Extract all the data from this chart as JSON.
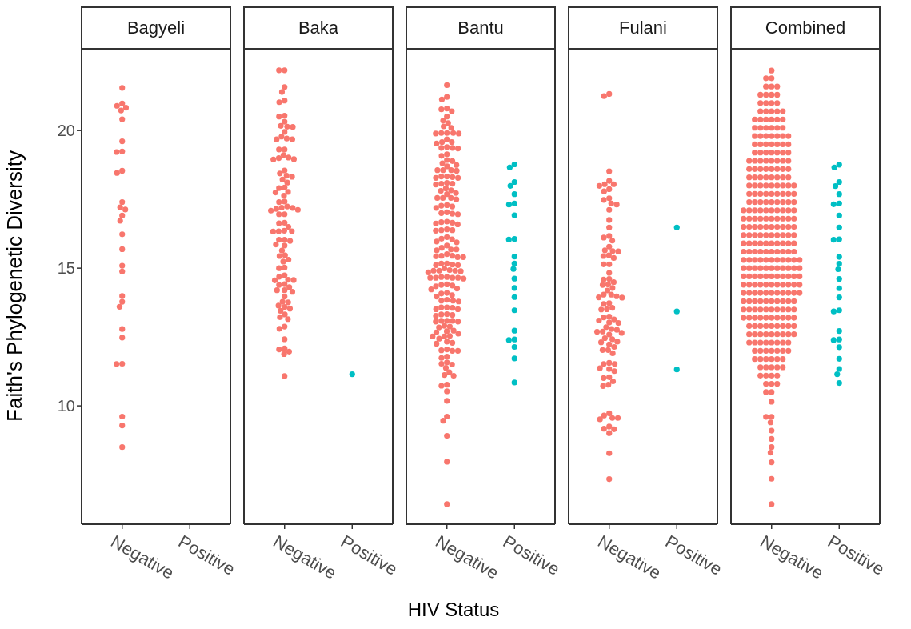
{
  "chart_data": [
    {
      "type": "scatter",
      "title": "Bagyeli",
      "ylabel": "Faith's Phylogenetic Diversity",
      "categories": [
        "Negative",
        "Positive"
      ],
      "ylim": [
        5.7,
        23.0
      ],
      "yticks": [
        10,
        15,
        20
      ],
      "marker": "circle",
      "series": [
        {
          "color": "#f8766d",
          "x": [
            "Negative",
            "Negative",
            "Negative",
            "Negative",
            "Negative",
            "Negative",
            "Negative",
            "Negative",
            "Negative",
            "Negative",
            "Negative",
            "Negative",
            "Negative",
            "Negative",
            "Negative",
            "Negative",
            "Negative",
            "Negative",
            "Negative",
            "Negative",
            "Negative",
            "Negative",
            "Negative",
            "Negative",
            "Negative",
            "Negative",
            "Negative",
            "Negative",
            "Negative",
            "Negative"
          ],
          "values": [
            21.55,
            20.9,
            20.73,
            20.98,
            20.83,
            20.41,
            19.61,
            19.22,
            19.24,
            18.46,
            18.54,
            17.4,
            17.21,
            17.13,
            16.91,
            16.72,
            16.23,
            15.69,
            15.09,
            14.88,
            13.99,
            13.78,
            13.6,
            12.79,
            12.48,
            11.52,
            11.53,
            9.61,
            9.29,
            8.5
          ]
        }
      ]
    },
    {
      "type": "scatter",
      "title": "Baka",
      "categories": [
        "Negative",
        "Positive"
      ],
      "ylim": [
        5.7,
        23.0
      ],
      "yticks": [
        10,
        15,
        20
      ],
      "marker": "circle",
      "tick_labels": "x",
      "series": [
        {
          "color": "#f8766d",
          "x": [
            "Negative",
            "Negative",
            "Negative",
            "Negative",
            "Negative",
            "Negative",
            "Negative",
            "Negative",
            "Negative",
            "Negative",
            "Negative",
            "Negative",
            "Negative",
            "Negative",
            "Negative",
            "Negative",
            "Negative",
            "Negative",
            "Negative",
            "Negative",
            "Negative",
            "Negative",
            "Negative",
            "Negative",
            "Negative",
            "Negative",
            "Negative",
            "Negative",
            "Negative",
            "Negative",
            "Negative",
            "Negative",
            "Negative",
            "Negative",
            "Negative",
            "Negative",
            "Negative",
            "Negative",
            "Negative",
            "Negative",
            "Negative",
            "Negative",
            "Negative",
            "Negative",
            "Negative",
            "Negative",
            "Negative",
            "Negative",
            "Negative",
            "Negative",
            "Negative",
            "Negative",
            "Negative",
            "Negative",
            "Negative",
            "Negative",
            "Negative",
            "Negative",
            "Negative",
            "Negative",
            "Negative",
            "Negative",
            "Negative",
            "Negative",
            "Negative",
            "Negative",
            "Negative",
            "Negative",
            "Negative",
            "Negative",
            "Negative",
            "Negative",
            "Negative",
            "Negative",
            "Negative",
            "Negative",
            "Negative",
            "Negative",
            "Negative",
            "Negative",
            "Negative",
            "Negative",
            "Negative",
            "Negative",
            "Negative",
            "Negative",
            "Negative",
            "Negative",
            "Negative",
            "Negative",
            "Negative",
            "Negative",
            "Negative"
          ],
          "values": [
            22.19,
            22.19,
            21.58,
            21.4,
            21.03,
            21.09,
            20.51,
            20.54,
            20.32,
            20.17,
            20.13,
            20.14,
            19.95,
            19.78,
            19.68,
            19.68,
            19.71,
            19.31,
            19.31,
            19.0,
            19.11,
            18.95,
            19.02,
            18.96,
            18.55,
            18.44,
            18.32,
            18.36,
            18.22,
            18.11,
            17.91,
            17.93,
            17.75,
            17.77,
            17.63,
            17.42,
            17.4,
            17.24,
            17.12,
            17.19,
            17.15,
            17.09,
            17.2,
            16.96,
            16.96,
            16.65,
            16.5,
            16.63,
            16.34,
            16.33,
            16.36,
            16.34,
            16.03,
            16.03,
            15.99,
            15.86,
            15.82,
            15.64,
            15.44,
            15.47,
            15.31,
            15.24,
            15.0,
            15.02,
            14.69,
            14.57,
            14.56,
            14.74,
            14.58,
            14.42,
            14.39,
            14.2,
            14.31,
            14.2,
            14.14,
            13.97,
            13.76,
            13.78,
            13.59,
            13.53,
            13.64,
            13.45,
            13.32,
            13.22,
            13.15,
            12.88,
            12.8,
            12.42,
            12.05,
            12.09,
            11.97,
            11.88,
            11.08
          ]
        },
        {
          "color": "#00bfc4",
          "x": [
            "Positive"
          ],
          "values": [
            11.15
          ]
        }
      ]
    },
    {
      "type": "scatter",
      "title": "Bantu",
      "xlabel": "HIV Status",
      "categories": [
        "Negative",
        "Positive"
      ],
      "ylim": [
        5.7,
        23.0
      ],
      "yticks": [
        10,
        15,
        20
      ],
      "marker": "circle",
      "tick_labels": "x",
      "series": [
        {
          "color": "#f8766d",
          "x": [
            "Negative",
            "Negative",
            "Negative",
            "Negative",
            "Negative",
            "Negative",
            "Negative",
            "Negative",
            "Negative",
            "Negative",
            "Negative",
            "Negative",
            "Negative",
            "Negative",
            "Negative",
            "Negative",
            "Negative",
            "Negative",
            "Negative",
            "Negative",
            "Negative",
            "Negative",
            "Negative",
            "Negative",
            "Negative",
            "Negative",
            "Negative",
            "Negative",
            "Negative",
            "Negative",
            "Negative",
            "Negative",
            "Negative",
            "Negative",
            "Negative",
            "Negative",
            "Negative",
            "Negative",
            "Negative",
            "Negative",
            "Negative",
            "Negative",
            "Negative",
            "Negative",
            "Negative",
            "Negative",
            "Negative",
            "Negative",
            "Negative",
            "Negative",
            "Negative",
            "Negative",
            "Negative",
            "Negative",
            "Negative",
            "Negative",
            "Negative",
            "Negative",
            "Negative",
            "Negative",
            "Negative",
            "Negative",
            "Negative",
            "Negative",
            "Negative",
            "Negative",
            "Negative",
            "Negative",
            "Negative",
            "Negative",
            "Negative",
            "Negative",
            "Negative",
            "Negative",
            "Negative",
            "Negative",
            "Negative",
            "Negative",
            "Negative",
            "Negative",
            "Negative",
            "Negative",
            "Negative",
            "Negative",
            "Negative",
            "Negative",
            "Negative",
            "Negative",
            "Negative",
            "Negative",
            "Negative",
            "Negative",
            "Negative",
            "Negative",
            "Negative",
            "Negative",
            "Negative",
            "Negative",
            "Negative",
            "Negative",
            "Negative",
            "Negative",
            "Negative",
            "Negative",
            "Negative",
            "Negative",
            "Negative",
            "Negative",
            "Negative",
            "Negative",
            "Negative",
            "Negative",
            "Negative",
            "Negative",
            "Negative",
            "Negative",
            "Negative",
            "Negative",
            "Negative",
            "Negative",
            "Negative",
            "Negative",
            "Negative",
            "Negative",
            "Negative",
            "Negative",
            "Negative",
            "Negative",
            "Negative",
            "Negative",
            "Negative",
            "Negative",
            "Negative",
            "Negative",
            "Negative",
            "Negative",
            "Negative",
            "Negative",
            "Negative",
            "Negative",
            "Negative",
            "Negative",
            "Negative",
            "Negative",
            "Negative",
            "Negative",
            "Negative",
            "Negative",
            "Negative",
            "Negative",
            "Negative",
            "Negative",
            "Negative",
            "Negative",
            "Negative",
            "Negative",
            "Negative",
            "Negative",
            "Negative",
            "Negative",
            "Negative",
            "Negative",
            "Negative",
            "Negative",
            "Negative",
            "Negative",
            "Negative",
            "Negative",
            "Negative"
          ],
          "values": [
            21.65,
            21.22,
            21.13,
            20.77,
            20.8,
            20.7,
            20.51,
            20.36,
            20.27,
            20.15,
            20.1,
            19.91,
            19.89,
            19.91,
            19.89,
            19.91,
            19.68,
            19.58,
            19.53,
            19.58,
            19.4,
            19.37,
            19.37,
            19.35,
            19.14,
            19.08,
            18.93,
            18.81,
            18.75,
            18.89,
            18.7,
            18.56,
            18.56,
            18.54,
            18.56,
            18.31,
            18.33,
            18.33,
            18.28,
            18.28,
            18.07,
            18.1,
            18.07,
            18.04,
            17.83,
            17.81,
            17.9,
            17.73,
            17.69,
            17.55,
            17.55,
            17.5,
            17.55,
            17.24,
            17.29,
            17.27,
            17.19,
            16.98,
            17.0,
            17.03,
            16.96,
            16.65,
            16.67,
            16.69,
            16.62,
            16.59,
            16.38,
            16.36,
            16.38,
            16.41,
            15.97,
            16.05,
            16.07,
            16.13,
            15.94,
            15.68,
            15.74,
            15.82,
            15.65,
            15.68,
            15.43,
            15.45,
            15.4,
            15.45,
            15.51,
            15.4,
            15.11,
            15.17,
            15.11,
            15.13,
            15.17,
            14.91,
            14.91,
            14.89,
            14.91,
            14.93,
            14.99,
            14.85,
            14.65,
            14.68,
            14.65,
            14.65,
            14.68,
            14.62,
            14.65,
            14.26,
            14.41,
            14.34,
            14.39,
            14.37,
            14.23,
            14.08,
            14.02,
            14.1,
            13.97,
            13.82,
            13.79,
            13.85,
            13.82,
            13.58,
            13.56,
            13.58,
            13.51,
            13.51,
            13.3,
            13.27,
            13.33,
            13.32,
            13.09,
            13.06,
            13.09,
            13.09,
            13.06,
            12.88,
            12.85,
            12.91,
            12.67,
            12.62,
            12.71,
            12.73,
            12.54,
            12.52,
            12.52,
            12.26,
            12.33,
            12.29,
            12.44,
            12.02,
            12.0,
            12.05,
            12.0,
            11.74,
            11.79,
            11.58,
            11.5,
            11.53,
            11.38,
            11.12,
            11.22,
            11.09,
            10.73,
            10.77,
            10.53,
            10.18,
            9.61,
            9.46,
            8.91,
            7.97,
            6.43
          ]
        },
        {
          "color": "#00bfc4",
          "x": [
            "Positive",
            "Positive",
            "Positive",
            "Positive",
            "Positive",
            "Positive",
            "Positive",
            "Positive",
            "Positive",
            "Positive",
            "Positive",
            "Positive",
            "Positive",
            "Positive",
            "Positive",
            "Positive",
            "Positive",
            "Positive",
            "Positive",
            "Positive",
            "Positive",
            "Positive",
            "Positive"
          ],
          "values": [
            18.66,
            18.77,
            17.99,
            18.13,
            17.69,
            17.35,
            17.31,
            16.92,
            16.04,
            16.06,
            15.42,
            15.17,
            14.97,
            14.62,
            14.28,
            13.95,
            13.47,
            12.73,
            12.39,
            12.41,
            12.14,
            11.72,
            10.85
          ]
        }
      ]
    },
    {
      "type": "scatter",
      "title": "Fulani",
      "categories": [
        "Negative",
        "Positive"
      ],
      "ylim": [
        5.7,
        23.0
      ],
      "yticks": [
        10,
        15,
        20
      ],
      "marker": "circle",
      "tick_labels": "x",
      "series": [
        {
          "color": "#f8766d",
          "x": [
            "Negative",
            "Negative",
            "Negative",
            "Negative",
            "Negative",
            "Negative",
            "Negative",
            "Negative",
            "Negative",
            "Negative",
            "Negative",
            "Negative",
            "Negative",
            "Negative",
            "Negative",
            "Negative",
            "Negative",
            "Negative",
            "Negative",
            "Negative",
            "Negative",
            "Negative",
            "Negative",
            "Negative",
            "Negative",
            "Negative",
            "Negative",
            "Negative",
            "Negative",
            "Negative",
            "Negative",
            "Negative",
            "Negative",
            "Negative",
            "Negative",
            "Negative",
            "Negative",
            "Negative",
            "Negative",
            "Negative",
            "Negative",
            "Negative",
            "Negative",
            "Negative",
            "Negative",
            "Negative",
            "Negative",
            "Negative",
            "Negative",
            "Negative",
            "Negative",
            "Negative",
            "Negative",
            "Negative",
            "Negative",
            "Negative",
            "Negative",
            "Negative",
            "Negative",
            "Negative",
            "Negative",
            "Negative",
            "Negative",
            "Negative",
            "Negative",
            "Negative",
            "Negative",
            "Negative",
            "Negative",
            "Negative",
            "Negative",
            "Negative",
            "Negative",
            "Negative",
            "Negative",
            "Negative",
            "Negative",
            "Negative",
            "Negative",
            "Negative",
            "Negative",
            "Negative",
            "Negative",
            "Negative",
            "Negative",
            "Negative",
            "Negative",
            "Negative",
            "Negative",
            "Negative"
          ],
          "values": [
            21.33,
            21.25,
            18.52,
            18.17,
            17.99,
            18.05,
            18.05,
            17.87,
            17.79,
            17.48,
            17.54,
            17.31,
            17.35,
            17.12,
            16.75,
            16.48,
            16.17,
            16.11,
            16.0,
            15.78,
            15.61,
            15.65,
            15.62,
            15.44,
            15.37,
            15.47,
            15.14,
            15.14,
            14.83,
            14.59,
            14.61,
            14.41,
            14.39,
            14.49,
            14.28,
            14.19,
            13.98,
            13.93,
            14.04,
            14.04,
            13.94,
            13.7,
            13.73,
            13.51,
            13.5,
            13.56,
            13.24,
            13.14,
            13.1,
            13.21,
            13.03,
            13.01,
            12.76,
            12.69,
            12.86,
            12.65,
            12.79,
            12.7,
            12.59,
            12.46,
            12.42,
            12.31,
            12.33,
            12.23,
            12.14,
            12.03,
            12.03,
            11.91,
            11.52,
            11.56,
            11.52,
            11.34,
            11.37,
            11.26,
            11.04,
            11.01,
            10.89,
            10.77,
            10.72,
            9.73,
            9.65,
            9.56,
            9.56,
            9.51,
            9.15,
            9.25,
            9.17,
            9.01,
            8.28,
            7.34
          ]
        },
        {
          "color": "#00bfc4",
          "x": [
            "Positive",
            "Positive",
            "Positive"
          ],
          "values": [
            16.48,
            13.43,
            11.32
          ]
        }
      ]
    },
    {
      "type": "scatter",
      "title": "Combined",
      "categories": [
        "Negative",
        "Positive"
      ],
      "ylim": [
        5.7,
        23.0
      ],
      "yticks": [
        10,
        15,
        20
      ],
      "marker": "circle",
      "tick_labels": "x",
      "series": [
        {
          "color": "#f8766d",
          "x": [
            "Negative",
            "Negative",
            "Negative",
            "Negative",
            "Negative",
            "Negative",
            "Negative",
            "Negative",
            "Negative",
            "Negative",
            "Negative",
            "Negative",
            "Negative",
            "Negative",
            "Negative",
            "Negative",
            "Negative",
            "Negative",
            "Negative",
            "Negative",
            "Negative",
            "Negative",
            "Negative",
            "Negative",
            "Negative",
            "Negative",
            "Negative",
            "Negative",
            "Negative",
            "Negative",
            "Negative",
            "Negative",
            "Negative",
            "Negative",
            "Negative",
            "Negative",
            "Negative",
            "Negative",
            "Negative",
            "Negative",
            "Negative",
            "Negative",
            "Negative",
            "Negative",
            "Negative",
            "Negative",
            "Negative",
            "Negative",
            "Negative",
            "Negative",
            "Negative",
            "Negative",
            "Negative",
            "Negative",
            "Negative",
            "Negative",
            "Negative",
            "Negative",
            "Negative",
            "Negative",
            "Negative",
            "Negative",
            "Negative",
            "Negative",
            "Negative",
            "Negative",
            "Negative",
            "Negative",
            "Negative",
            "Negative",
            "Negative",
            "Negative",
            "Negative",
            "Negative",
            "Negative",
            "Negative",
            "Negative",
            "Negative",
            "Negative",
            "Negative",
            "Negative",
            "Negative",
            "Negative",
            "Negative",
            "Negative",
            "Negative",
            "Negative",
            "Negative",
            "Negative",
            "Negative",
            "Negative",
            "Negative",
            "Negative",
            "Negative",
            "Negative",
            "Negative",
            "Negative",
            "Negative",
            "Negative",
            "Negative",
            "Negative",
            "Negative",
            "Negative",
            "Negative",
            "Negative",
            "Negative",
            "Negative",
            "Negative",
            "Negative",
            "Negative",
            "Negative",
            "Negative",
            "Negative",
            "Negative",
            "Negative",
            "Negative",
            "Negative",
            "Negative",
            "Negative",
            "Negative",
            "Negative",
            "Negative",
            "Negative",
            "Negative",
            "Negative",
            "Negative",
            "Negative",
            "Negative",
            "Negative",
            "Negative",
            "Negative",
            "Negative",
            "Negative",
            "Negative",
            "Negative",
            "Negative",
            "Negative",
            "Negative",
            "Negative",
            "Negative",
            "Negative",
            "Negative",
            "Negative",
            "Negative",
            "Negative",
            "Negative",
            "Negative",
            "Negative",
            "Negative",
            "Negative",
            "Negative",
            "Negative",
            "Negative",
            "Negative",
            "Negative",
            "Negative",
            "Negative",
            "Negative",
            "Negative",
            "Negative",
            "Negative",
            "Negative",
            "Negative",
            "Negative",
            "Negative",
            "Negative",
            "Negative",
            "Negative",
            "Negative",
            "Negative",
            "Negative",
            "Negative",
            "Negative",
            "Negative",
            "Negative",
            "Negative",
            "Negative",
            "Negative",
            "Negative",
            "Negative",
            "Negative",
            "Negative",
            "Negative",
            "Negative",
            "Negative",
            "Negative",
            "Negative",
            "Negative",
            "Negative",
            "Negative",
            "Negative",
            "Negative",
            "Negative",
            "Negative",
            "Negative",
            "Negative",
            "Negative",
            "Negative",
            "Negative",
            "Negative",
            "Negative",
            "Negative",
            "Negative",
            "Negative",
            "Negative",
            "Negative",
            "Negative",
            "Negative",
            "Negative",
            "Negative",
            "Negative",
            "Negative",
            "Negative",
            "Negative",
            "Negative",
            "Negative",
            "Negative",
            "Negative",
            "Negative",
            "Negative",
            "Negative",
            "Negative",
            "Negative",
            "Negative",
            "Negative",
            "Negative",
            "Negative",
            "Negative",
            "Negative",
            "Negative",
            "Negative",
            "Negative",
            "Negative",
            "Negative",
            "Negative",
            "Negative",
            "Negative",
            "Negative",
            "Negative",
            "Negative",
            "Negative",
            "Negative",
            "Negative",
            "Negative",
            "Negative",
            "Negative",
            "Negative",
            "Negative",
            "Negative",
            "Negative",
            "Negative",
            "Negative",
            "Negative",
            "Negative",
            "Negative",
            "Negative",
            "Negative",
            "Negative",
            "Negative",
            "Negative",
            "Negative",
            "Negative",
            "Negative",
            "Negative",
            "Negative",
            "Negative",
            "Negative",
            "Negative",
            "Negative",
            "Negative",
            "Negative",
            "Negative",
            "Negative",
            "Negative",
            "Negative",
            "Negative",
            "Negative",
            "Negative",
            "Negative",
            "Negative",
            "Negative",
            "Negative",
            "Negative",
            "Negative",
            "Negative",
            "Negative",
            "Negative",
            "Negative",
            "Negative",
            "Negative",
            "Negative",
            "Negative",
            "Negative",
            "Negative",
            "Negative",
            "Negative",
            "Negative",
            "Negative",
            "Negative",
            "Negative",
            "Negative",
            "Negative",
            "Negative",
            "Negative",
            "Negative",
            "Negative",
            "Negative",
            "Negative",
            "Negative",
            "Negative",
            "Negative",
            "Negative"
          ],
          "values": [
            22.18,
            21.9,
            21.9,
            21.6,
            21.6,
            21.6,
            21.3,
            21.3,
            21.3,
            21.3,
            21.0,
            21.0,
            21.0,
            21.0,
            20.7,
            20.7,
            20.7,
            20.7,
            20.7,
            20.4,
            20.4,
            20.4,
            20.4,
            20.4,
            20.4,
            20.1,
            20.1,
            20.1,
            20.1,
            20.1,
            20.1,
            19.8,
            19.8,
            19.8,
            19.8,
            19.8,
            19.8,
            19.8,
            19.5,
            19.5,
            19.5,
            19.5,
            19.5,
            19.5,
            19.5,
            19.2,
            19.2,
            19.2,
            19.2,
            19.2,
            19.2,
            19.2,
            18.9,
            18.9,
            18.9,
            18.9,
            18.9,
            18.9,
            18.9,
            18.9,
            18.6,
            18.6,
            18.6,
            18.6,
            18.6,
            18.6,
            18.6,
            18.6,
            18.3,
            18.3,
            18.3,
            18.3,
            18.3,
            18.3,
            18.3,
            18.3,
            18.0,
            18.0,
            18.0,
            18.0,
            18.0,
            18.0,
            18.0,
            18.0,
            18.0,
            17.7,
            17.7,
            17.7,
            17.7,
            17.7,
            17.7,
            17.7,
            17.7,
            17.7,
            17.4,
            17.4,
            17.4,
            17.4,
            17.4,
            17.4,
            17.4,
            17.4,
            17.4,
            17.1,
            17.1,
            17.1,
            17.1,
            17.1,
            17.1,
            17.1,
            17.1,
            17.1,
            17.1,
            16.8,
            16.8,
            16.8,
            16.8,
            16.8,
            16.8,
            16.8,
            16.8,
            16.8,
            16.8,
            16.5,
            16.5,
            16.5,
            16.5,
            16.5,
            16.5,
            16.5,
            16.5,
            16.5,
            16.5,
            16.2,
            16.2,
            16.2,
            16.2,
            16.2,
            16.2,
            16.2,
            16.2,
            16.2,
            16.2,
            15.9,
            15.9,
            15.9,
            15.9,
            15.9,
            15.9,
            15.9,
            15.9,
            15.9,
            15.9,
            15.6,
            15.6,
            15.6,
            15.6,
            15.6,
            15.6,
            15.6,
            15.6,
            15.6,
            15.6,
            15.3,
            15.3,
            15.3,
            15.3,
            15.3,
            15.3,
            15.3,
            15.3,
            15.3,
            15.3,
            15.3,
            15.0,
            15.0,
            15.0,
            15.0,
            15.0,
            15.0,
            15.0,
            15.0,
            15.0,
            15.0,
            15.0,
            14.7,
            14.7,
            14.7,
            14.7,
            14.7,
            14.7,
            14.7,
            14.7,
            14.7,
            14.7,
            14.7,
            14.4,
            14.4,
            14.4,
            14.4,
            14.4,
            14.4,
            14.4,
            14.4,
            14.4,
            14.4,
            14.4,
            14.1,
            14.1,
            14.1,
            14.1,
            14.1,
            14.1,
            14.1,
            14.1,
            14.1,
            14.1,
            14.1,
            13.8,
            13.8,
            13.8,
            13.8,
            13.8,
            13.8,
            13.8,
            13.8,
            13.8,
            13.8,
            13.5,
            13.5,
            13.5,
            13.5,
            13.5,
            13.5,
            13.5,
            13.5,
            13.5,
            13.5,
            13.2,
            13.2,
            13.2,
            13.2,
            13.2,
            13.2,
            13.2,
            13.2,
            13.2,
            13.2,
            12.9,
            12.9,
            12.9,
            12.9,
            12.9,
            12.9,
            12.9,
            12.9,
            12.9,
            12.6,
            12.6,
            12.6,
            12.6,
            12.6,
            12.6,
            12.6,
            12.6,
            12.6,
            12.3,
            12.3,
            12.3,
            12.3,
            12.3,
            12.3,
            12.3,
            12.3,
            12.0,
            12.0,
            12.0,
            12.0,
            12.0,
            12.0,
            12.0,
            11.7,
            11.7,
            11.7,
            11.7,
            11.7,
            11.7,
            11.4,
            11.4,
            11.4,
            11.4,
            11.4,
            11.1,
            11.1,
            11.1,
            11.1,
            10.8,
            10.8,
            10.8,
            10.5,
            10.5,
            10.15,
            9.6,
            9.6,
            9.4,
            9.1,
            8.8,
            8.5,
            8.3,
            7.95,
            7.35,
            6.43
          ]
        },
        {
          "color": "#00bfc4",
          "x": [
            "Positive",
            "Positive",
            "Positive",
            "Positive",
            "Positive",
            "Positive",
            "Positive",
            "Positive",
            "Positive",
            "Positive",
            "Positive",
            "Positive",
            "Positive",
            "Positive",
            "Positive",
            "Positive",
            "Positive",
            "Positive",
            "Positive",
            "Positive",
            "Positive",
            "Positive",
            "Positive",
            "Positive",
            "Positive",
            "Positive",
            "Positive"
          ],
          "values": [
            18.66,
            18.76,
            17.98,
            18.13,
            17.69,
            17.35,
            17.32,
            16.91,
            16.48,
            16.05,
            16.03,
            15.41,
            15.16,
            14.96,
            14.61,
            14.27,
            13.94,
            13.47,
            13.43,
            12.72,
            12.39,
            12.41,
            12.13,
            11.71,
            11.34,
            11.15,
            10.83
          ]
        }
      ]
    }
  ]
}
